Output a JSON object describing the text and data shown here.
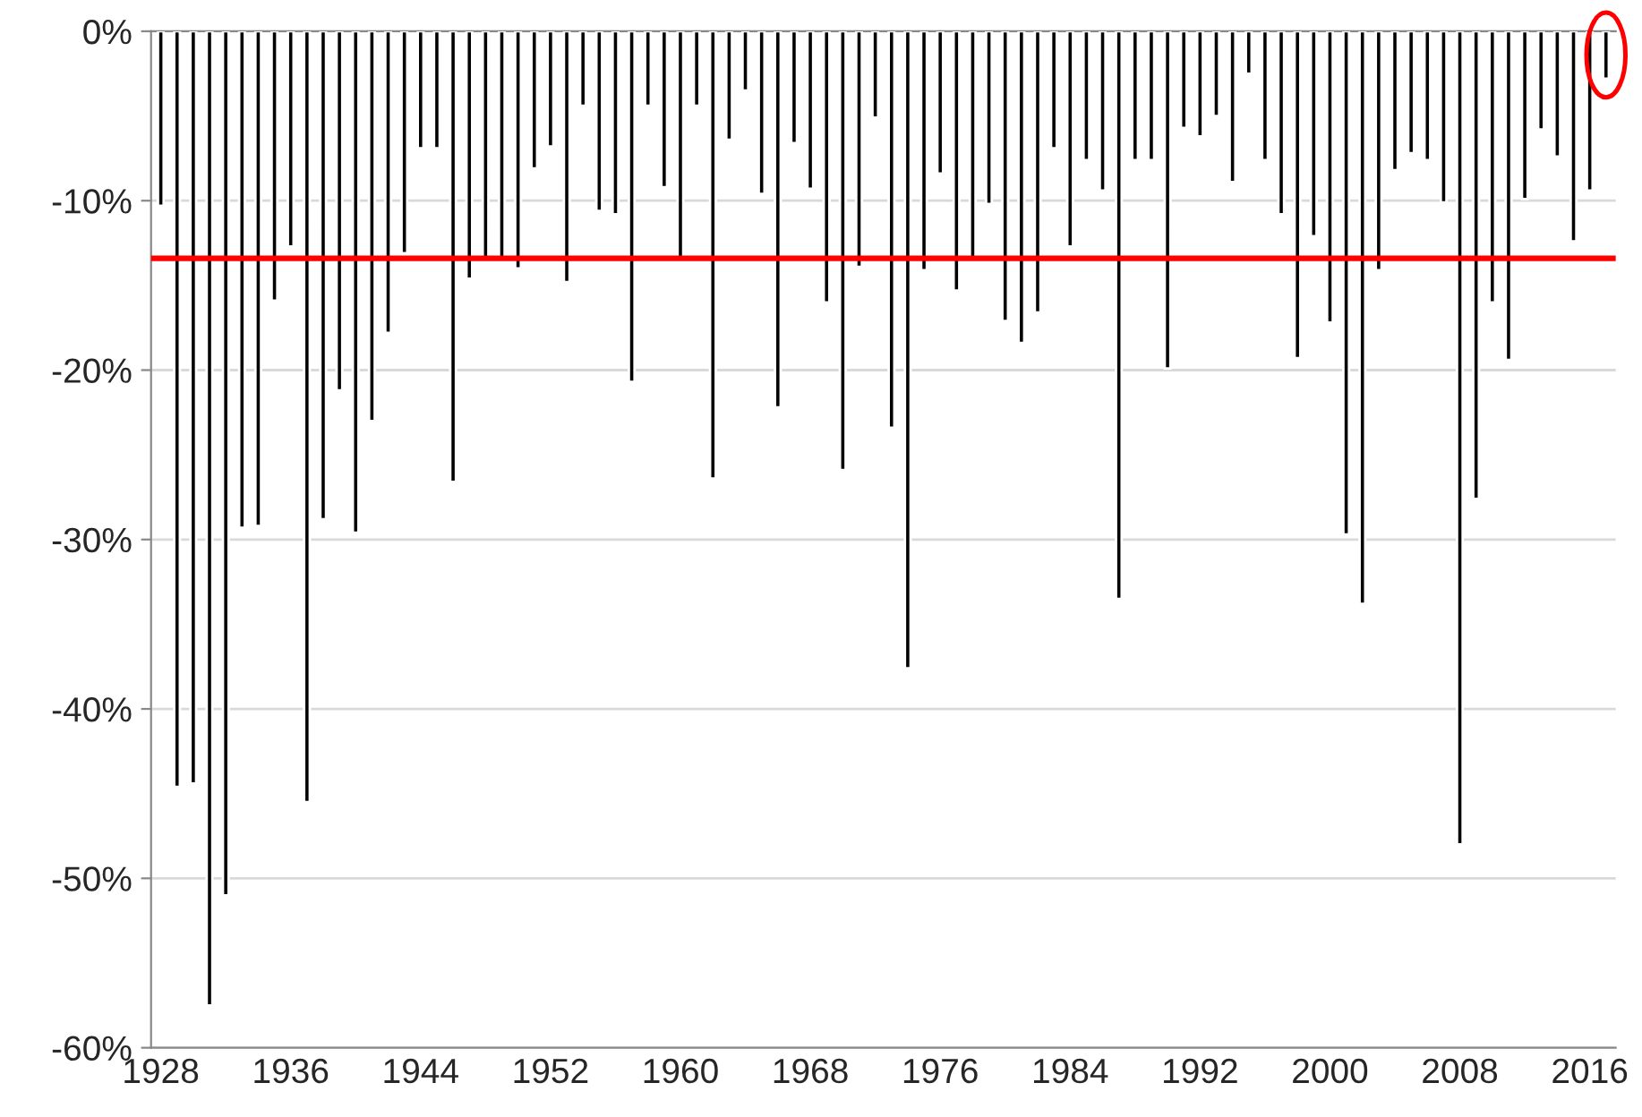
{
  "chart_data": {
    "type": "bar",
    "categories": [
      "1928",
      null,
      null,
      null,
      null,
      null,
      null,
      null,
      "1936",
      null,
      null,
      null,
      null,
      null,
      null,
      null,
      "1944",
      null,
      null,
      null,
      null,
      null,
      null,
      null,
      "1952",
      null,
      null,
      null,
      null,
      null,
      null,
      null,
      "1960",
      null,
      null,
      null,
      null,
      null,
      null,
      null,
      "1968",
      null,
      null,
      null,
      null,
      null,
      null,
      null,
      "1976",
      null,
      null,
      null,
      null,
      null,
      null,
      null,
      "1984",
      null,
      null,
      null,
      null,
      null,
      null,
      null,
      "1992",
      null,
      null,
      null,
      null,
      null,
      null,
      null,
      "2000",
      null,
      null,
      null,
      null,
      null,
      null,
      null,
      "2008",
      null,
      null,
      null,
      null,
      null,
      null,
      null,
      "2016",
      null
    ],
    "values": [
      -10.3,
      -44.6,
      -44.4,
      -57.5,
      -51.0,
      -29.3,
      -29.2,
      -15.9,
      -12.7,
      -45.5,
      -28.8,
      -21.2,
      -29.6,
      -23.0,
      -17.8,
      -13.1,
      -6.9,
      -6.9,
      -26.6,
      -14.6,
      -13.5,
      -13.6,
      -14.0,
      -8.1,
      -6.8,
      -14.8,
      -4.4,
      -10.6,
      -10.8,
      -20.7,
      -4.4,
      -9.2,
      -13.4,
      -4.4,
      -26.4,
      -6.4,
      -3.5,
      -9.6,
      -22.2,
      -6.6,
      -9.3,
      -16.0,
      -25.9,
      -13.9,
      -5.1,
      -23.4,
      -37.6,
      -14.1,
      -8.4,
      -15.3,
      -13.6,
      -10.2,
      -17.1,
      -18.4,
      -16.6,
      -6.9,
      -12.7,
      -7.6,
      -9.4,
      -33.5,
      -7.6,
      -7.6,
      -19.9,
      -5.7,
      -6.2,
      -5.0,
      -8.9,
      -2.5,
      -7.6,
      -10.8,
      -19.3,
      -12.1,
      -17.2,
      -29.7,
      -33.8,
      -14.1,
      -8.2,
      -7.2,
      -7.6,
      -10.1,
      -48.0,
      -27.6,
      -16.0,
      -19.4,
      -9.9,
      -5.8,
      -7.4,
      -12.4,
      -9.4,
      -2.8
    ],
    "color": "#000000",
    "ylim": [
      -60,
      0
    ],
    "yticks": [
      {
        "value": 0,
        "label": "0%"
      },
      {
        "value": -10,
        "label": "-10%"
      },
      {
        "value": -20,
        "label": "-20%"
      },
      {
        "value": -30,
        "label": "-30%"
      },
      {
        "value": -40,
        "label": "-40%"
      },
      {
        "value": -50,
        "label": "-50%"
      },
      {
        "value": -60,
        "label": "-60%"
      }
    ],
    "grid": "y",
    "ref_lines": [
      {
        "axis": "y",
        "value": -13.4,
        "color": "#ff0000"
      }
    ]
  }
}
